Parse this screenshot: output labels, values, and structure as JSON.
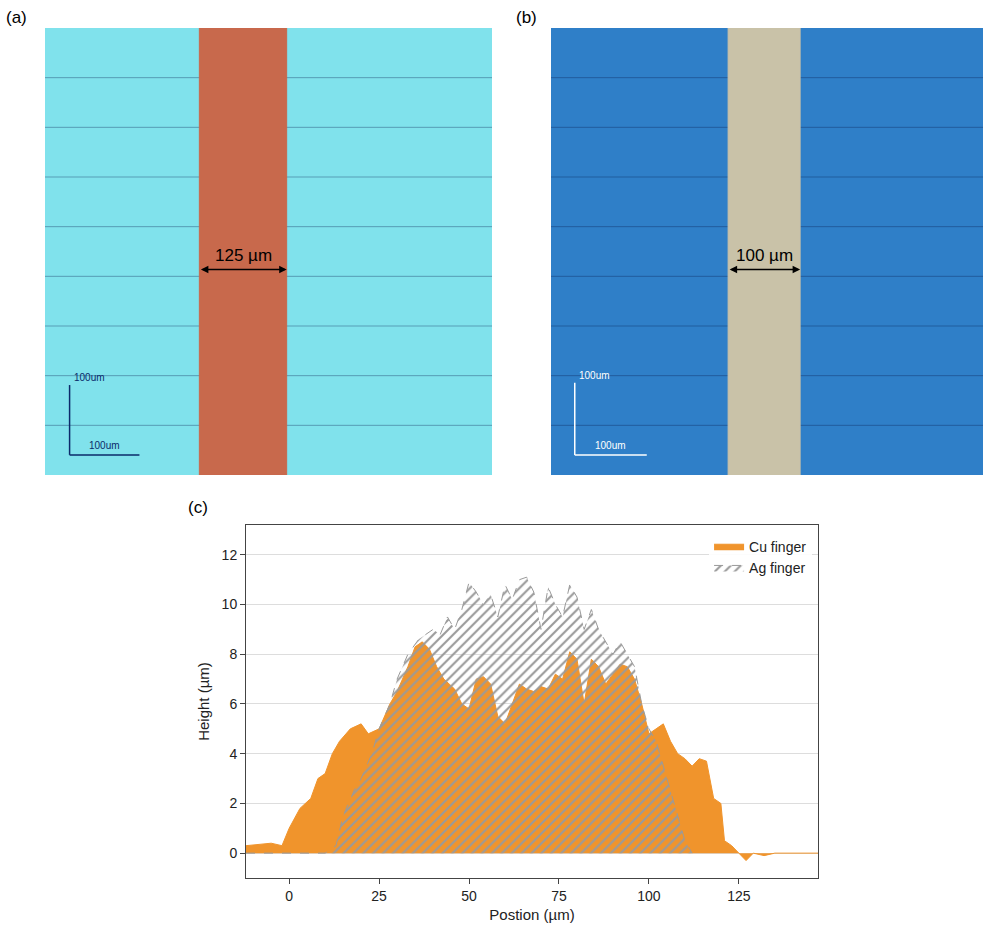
{
  "panels": [
    {
      "label": "(a)",
      "type": "micrograph",
      "xlim": [
        0,
        640
      ],
      "ylim": [
        0,
        640
      ],
      "tick_labels": false,
      "colors": [
        "#80e2ec",
        "#c8694c",
        "#0b2a6a"
      ],
      "finger_start": 221,
      "finger_width": 125,
      "width_label": "125 µm",
      "scale_bar": 100,
      "scale_bar_labels": [
        "100um",
        "100um"
      ]
    },
    {
      "label": "(b)",
      "type": "micrograph",
      "xlim": [
        0,
        600
      ],
      "ylim": [
        0,
        620
      ],
      "tick_labels": false,
      "colors": [
        "#2f7fc8",
        "#c9c2a8",
        "#ffffff"
      ],
      "finger_start": 246,
      "finger_width": 100,
      "width_label": "100 µm",
      "scale_bar": 100,
      "scale_bar_labels": [
        "100um",
        "100um"
      ]
    }
  ],
  "chart_data": {
    "type": "area",
    "label": "(c)",
    "x_label": "Postion (µm)",
    "y_label": "Height (µm)",
    "xlim": [
      -12,
      147
    ],
    "ylim": [
      -1,
      13.2
    ],
    "xticks": [
      0,
      25,
      50,
      75,
      100,
      125
    ],
    "yticks": [
      0,
      2,
      4,
      6,
      8,
      10,
      12
    ],
    "grid": true,
    "legend": "top right",
    "series": [
      {
        "name": "Cu finger",
        "type": "area",
        "color": "#f0942c",
        "line_style": "solid",
        "x": [
          -12,
          -5,
          -2,
          0,
          3,
          6,
          8,
          10,
          12,
          14,
          17,
          20,
          22,
          25,
          28,
          30,
          33,
          35,
          37,
          39,
          41,
          43,
          46,
          48,
          50,
          52,
          54,
          56,
          58,
          60,
          62,
          64,
          66,
          68,
          70,
          72,
          74,
          76,
          78,
          80,
          82,
          84,
          86,
          88,
          90,
          92,
          94,
          96,
          98,
          100,
          102,
          104,
          106,
          108,
          110,
          112,
          114,
          116,
          118,
          120,
          121,
          123,
          125,
          127,
          129,
          132,
          135,
          147
        ],
        "values": [
          0.3,
          0.4,
          0.3,
          1.0,
          1.8,
          2.2,
          3.0,
          3.2,
          4.0,
          4.5,
          5.0,
          5.2,
          4.8,
          5.0,
          6.0,
          6.5,
          7.5,
          8.3,
          8.5,
          8.2,
          7.5,
          7.0,
          6.6,
          6.0,
          5.8,
          7.0,
          7.1,
          6.8,
          5.5,
          5.2,
          6.0,
          6.8,
          6.6,
          6.5,
          6.7,
          6.6,
          7.2,
          7.0,
          8.1,
          7.8,
          6.0,
          7.8,
          7.5,
          6.8,
          7.2,
          7.6,
          7.5,
          7.0,
          6.0,
          4.8,
          5.0,
          5.2,
          4.5,
          4.0,
          3.8,
          3.5,
          3.8,
          3.7,
          2.2,
          2.0,
          0.5,
          0.3,
          0.0,
          -0.3,
          0.0,
          -0.1,
          0.0,
          0.0
        ]
      },
      {
        "name": "Ag finger",
        "type": "hatched_area",
        "color": "#9a9a9a",
        "line_style": "dashed",
        "x": [
          -12,
          10,
          13,
          15,
          18,
          20,
          23,
          25,
          28,
          30,
          33,
          36,
          38,
          40,
          42,
          44,
          46,
          48,
          50,
          52,
          54,
          56,
          58,
          60,
          62,
          64,
          66,
          68,
          70,
          72,
          74,
          76,
          78,
          80,
          82,
          84,
          86,
          88,
          90,
          92,
          94,
          96,
          98,
          100,
          102,
          104,
          106,
          108,
          110,
          112
        ],
        "values": [
          0.0,
          0.0,
          0.3,
          1.5,
          2.5,
          3.0,
          4.0,
          5.0,
          6.0,
          7.0,
          8.0,
          8.6,
          8.8,
          9.0,
          8.8,
          9.5,
          9.0,
          9.8,
          10.9,
          10.5,
          10.0,
          10.4,
          9.5,
          10.8,
          10.2,
          11.0,
          11.1,
          10.5,
          9.0,
          10.7,
          10.0,
          9.5,
          10.8,
          10.3,
          9.0,
          9.8,
          9.0,
          8.5,
          8.0,
          8.5,
          8.0,
          7.5,
          6.0,
          5.0,
          4.5,
          3.5,
          2.5,
          1.5,
          0.5,
          0.0
        ]
      }
    ]
  }
}
